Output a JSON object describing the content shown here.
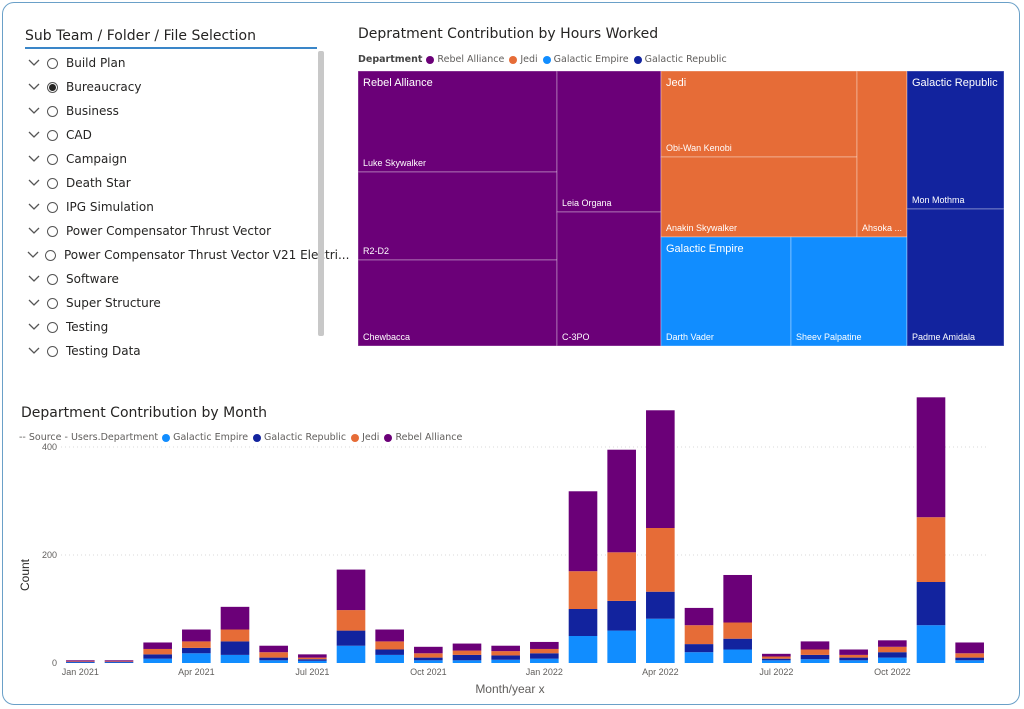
{
  "slicer": {
    "title": "Sub Team / Folder / File Selection",
    "items": [
      {
        "label": "Build Plan",
        "selected": false
      },
      {
        "label": "Bureaucracy",
        "selected": true
      },
      {
        "label": "Business",
        "selected": false
      },
      {
        "label": "CAD",
        "selected": false
      },
      {
        "label": "Campaign",
        "selected": false
      },
      {
        "label": "Death Star",
        "selected": false
      },
      {
        "label": "IPG Simulation",
        "selected": false
      },
      {
        "label": "Power Compensator Thrust Vector",
        "selected": false
      },
      {
        "label": "Power Compensator Thrust Vector V21 Electri...",
        "selected": false
      },
      {
        "label": "Software",
        "selected": false
      },
      {
        "label": "Super Structure",
        "selected": false
      },
      {
        "label": "Testing",
        "selected": false
      },
      {
        "label": "Testing Data",
        "selected": false
      }
    ]
  },
  "treemap": {
    "title": "Depratment Contribution by Hours Worked",
    "legend_title": "Department",
    "legend": [
      {
        "name": "Rebel Alliance",
        "color": "#6b0078"
      },
      {
        "name": "Jedi",
        "color": "#e66c37"
      },
      {
        "name": "Galactic Empire",
        "color": "#118dff"
      },
      {
        "name": "Galactic Republic",
        "color": "#12239e"
      }
    ],
    "groups": [
      {
        "name": "Rebel Alliance",
        "color": "#6b0078"
      },
      {
        "name": "Jedi",
        "color": "#e66c37"
      },
      {
        "name": "Galactic Empire",
        "color": "#118dff"
      },
      {
        "name": "Galactic Republic",
        "color": "#12239e"
      }
    ],
    "leaves": [
      "Luke Skywalker",
      "R2-D2",
      "Chewbacca",
      "Leia Organa",
      "C-3PO",
      "Obi-Wan Kenobi",
      "Anakin Skywalker",
      "Ahsoka ...",
      "Darth Vader",
      "Sheev Palpatine",
      "Mon Mothma",
      "Padme Amidala"
    ]
  },
  "chart_data": {
    "type": "bar",
    "stacked": true,
    "title": "Department Contribution by Month",
    "legend_title": "-- Source - Users.Department",
    "xlabel": "Month/year x",
    "ylabel": "Count",
    "ylim": [
      0,
      500
    ],
    "yticks": [
      0,
      200,
      400
    ],
    "grid": true,
    "legend_position": "top-left",
    "categories": [
      "Jan 2021",
      "Feb 2021",
      "Mar 2021",
      "Apr 2021",
      "May 2021",
      "Jun 2021",
      "Jul 2021",
      "Aug 2021",
      "Sep 2021",
      "Oct 2021",
      "Nov 2021",
      "Dec 2021",
      "Jan 2022",
      "Feb 2022",
      "Mar 2022",
      "Apr 2022",
      "May 2022",
      "Jun 2022",
      "Jul 2022",
      "Aug 2022",
      "Sep 2022",
      "Oct 2022",
      "Nov 2022",
      "Dec 2022"
    ],
    "tick_labels": [
      "Jan 2021",
      "",
      "",
      "Apr 2021",
      "",
      "",
      "Jul 2021",
      "",
      "",
      "Oct 2021",
      "",
      "",
      "Jan 2022",
      "",
      "",
      "Apr 2022",
      "",
      "",
      "Jul 2022",
      "",
      "",
      "Oct 2022",
      "",
      ""
    ],
    "series": [
      {
        "name": "Galactic Empire",
        "color": "#118dff",
        "values": [
          1,
          1,
          8,
          18,
          15,
          5,
          4,
          32,
          15,
          5,
          5,
          6,
          8,
          50,
          60,
          82,
          20,
          25,
          5,
          7,
          5,
          10,
          70,
          5
        ]
      },
      {
        "name": "Galactic Republic",
        "color": "#12239e",
        "values": [
          1,
          1,
          8,
          10,
          25,
          5,
          3,
          28,
          10,
          5,
          10,
          8,
          10,
          50,
          55,
          50,
          15,
          20,
          3,
          8,
          5,
          10,
          80,
          5
        ]
      },
      {
        "name": "Jedi",
        "color": "#e66c37",
        "values": [
          1,
          1,
          10,
          12,
          22,
          10,
          3,
          38,
          15,
          8,
          8,
          8,
          8,
          70,
          90,
          118,
          35,
          30,
          4,
          10,
          5,
          10,
          120,
          8
        ]
      },
      {
        "name": "Rebel Alliance",
        "color": "#6b0078",
        "values": [
          2,
          2,
          12,
          22,
          42,
          12,
          6,
          75,
          22,
          12,
          13,
          10,
          13,
          148,
          190,
          218,
          32,
          88,
          5,
          15,
          10,
          12,
          222,
          20
        ]
      }
    ]
  }
}
